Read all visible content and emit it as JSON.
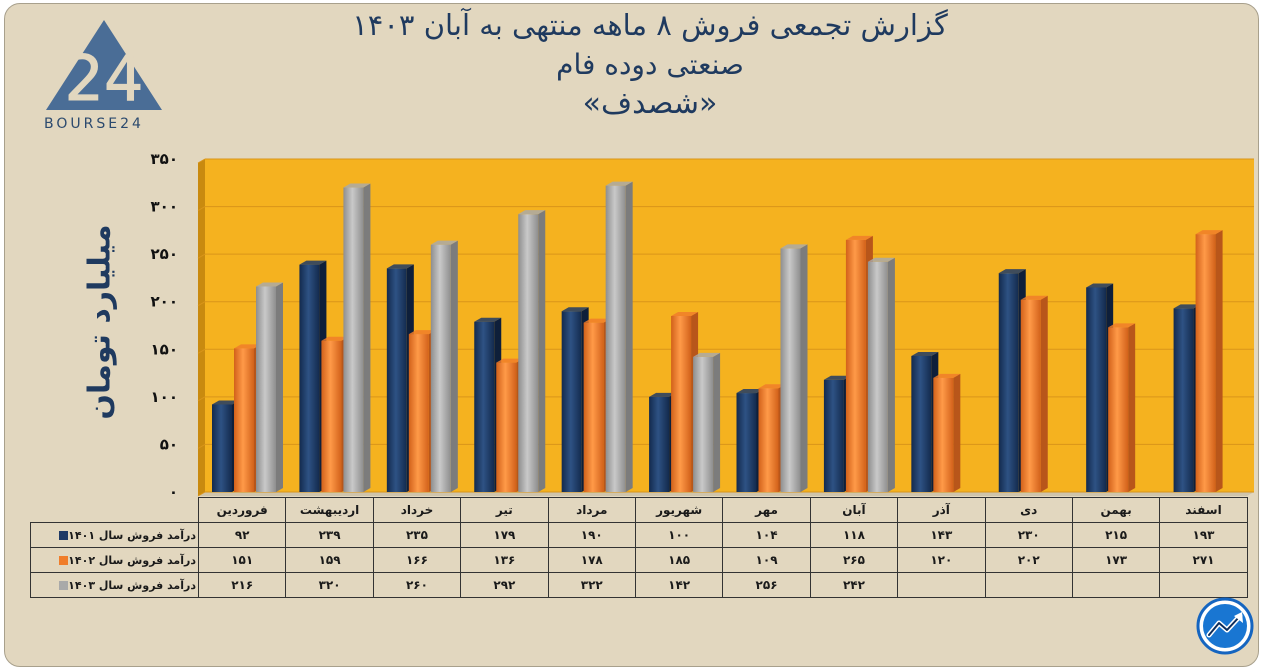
{
  "header": {
    "title_line1": "گزارش تجمعی فروش ۸ ماهه منتهی به آبان ۱۴۰۳",
    "title_line2": "صنعتی دوده فام",
    "title_line3": "«شصدف»"
  },
  "logo": {
    "text": "BOURSE24",
    "mark": "24"
  },
  "colors": {
    "frame_bg": "#e2d7bf",
    "plot_bg": "#f5b21f",
    "series_1401": "#1f3a66",
    "series_1402": "#f07d2a",
    "series_1403": "#a9a9a9"
  },
  "icons": {
    "badge": "trend-line-badge-icon"
  },
  "chart_data": {
    "type": "bar",
    "ylabel": "میلیارد تومان",
    "ylim": [
      0,
      350
    ],
    "yticks": [
      0,
      50,
      100,
      150,
      200,
      250,
      300,
      350
    ],
    "ytick_labels": [
      "۰",
      "۵۰",
      "۱۰۰",
      "۱۵۰",
      "۲۰۰",
      "۲۵۰",
      "۳۰۰",
      "۳۵۰"
    ],
    "categories": [
      "فروردین",
      "اردیبهشت",
      "خرداد",
      "تیر",
      "مرداد",
      "شهریور",
      "مهر",
      "آبان",
      "آذر",
      "دی",
      "بهمن",
      "اسفند"
    ],
    "series": [
      {
        "name": "درآمد فروش سال ۱۴۰۱",
        "values": [
          92,
          239,
          235,
          179,
          190,
          100,
          104,
          118,
          143,
          230,
          215,
          193
        ],
        "labels": [
          "۹۲",
          "۲۳۹",
          "۲۳۵",
          "۱۷۹",
          "۱۹۰",
          "۱۰۰",
          "۱۰۴",
          "۱۱۸",
          "۱۴۳",
          "۲۳۰",
          "۲۱۵",
          "۱۹۳"
        ]
      },
      {
        "name": "درآمد فروش سال ۱۴۰۲",
        "values": [
          151,
          159,
          166,
          136,
          178,
          185,
          109,
          265,
          120,
          202,
          173,
          271
        ],
        "labels": [
          "۱۵۱",
          "۱۵۹",
          "۱۶۶",
          "۱۳۶",
          "۱۷۸",
          "۱۸۵",
          "۱۰۹",
          "۲۶۵",
          "۱۲۰",
          "۲۰۲",
          "۱۷۳",
          "۲۷۱"
        ]
      },
      {
        "name": "درآمد فروش سال ۱۴۰۳",
        "values": [
          216,
          320,
          260,
          292,
          322,
          142,
          256,
          242,
          null,
          null,
          null,
          null
        ],
        "labels": [
          "۲۱۶",
          "۳۲۰",
          "۲۶۰",
          "۲۹۲",
          "۳۲۲",
          "۱۴۲",
          "۲۵۶",
          "۲۴۲",
          "",
          "",
          "",
          ""
        ]
      }
    ],
    "grid": true,
    "legend": "data-table"
  }
}
